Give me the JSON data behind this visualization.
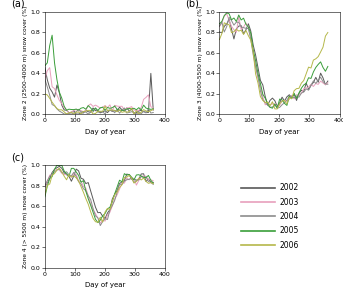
{
  "years": [
    "2002",
    "2003",
    "2004",
    "2005",
    "2006"
  ],
  "colors": [
    "#595959",
    "#e8a0bc",
    "#8c8c8c",
    "#3a9e3a",
    "#b5b84a"
  ],
  "ylabel_a": "Zone 2 (2500-4000 m) snow cover (%)",
  "ylabel_b": "Zone 3 (4000-5500 m) snow cover (%)",
  "ylabel_c": "Zone 4 (> 5500 m) snow cover (%)",
  "xlabel": "Day of year",
  "xlim": [
    0,
    400
  ],
  "ylim": [
    0.0,
    1.0
  ],
  "yticks": [
    0.0,
    0.2,
    0.4,
    0.6,
    0.8,
    1.0
  ],
  "xticks": [
    0,
    100,
    200,
    300,
    400
  ]
}
